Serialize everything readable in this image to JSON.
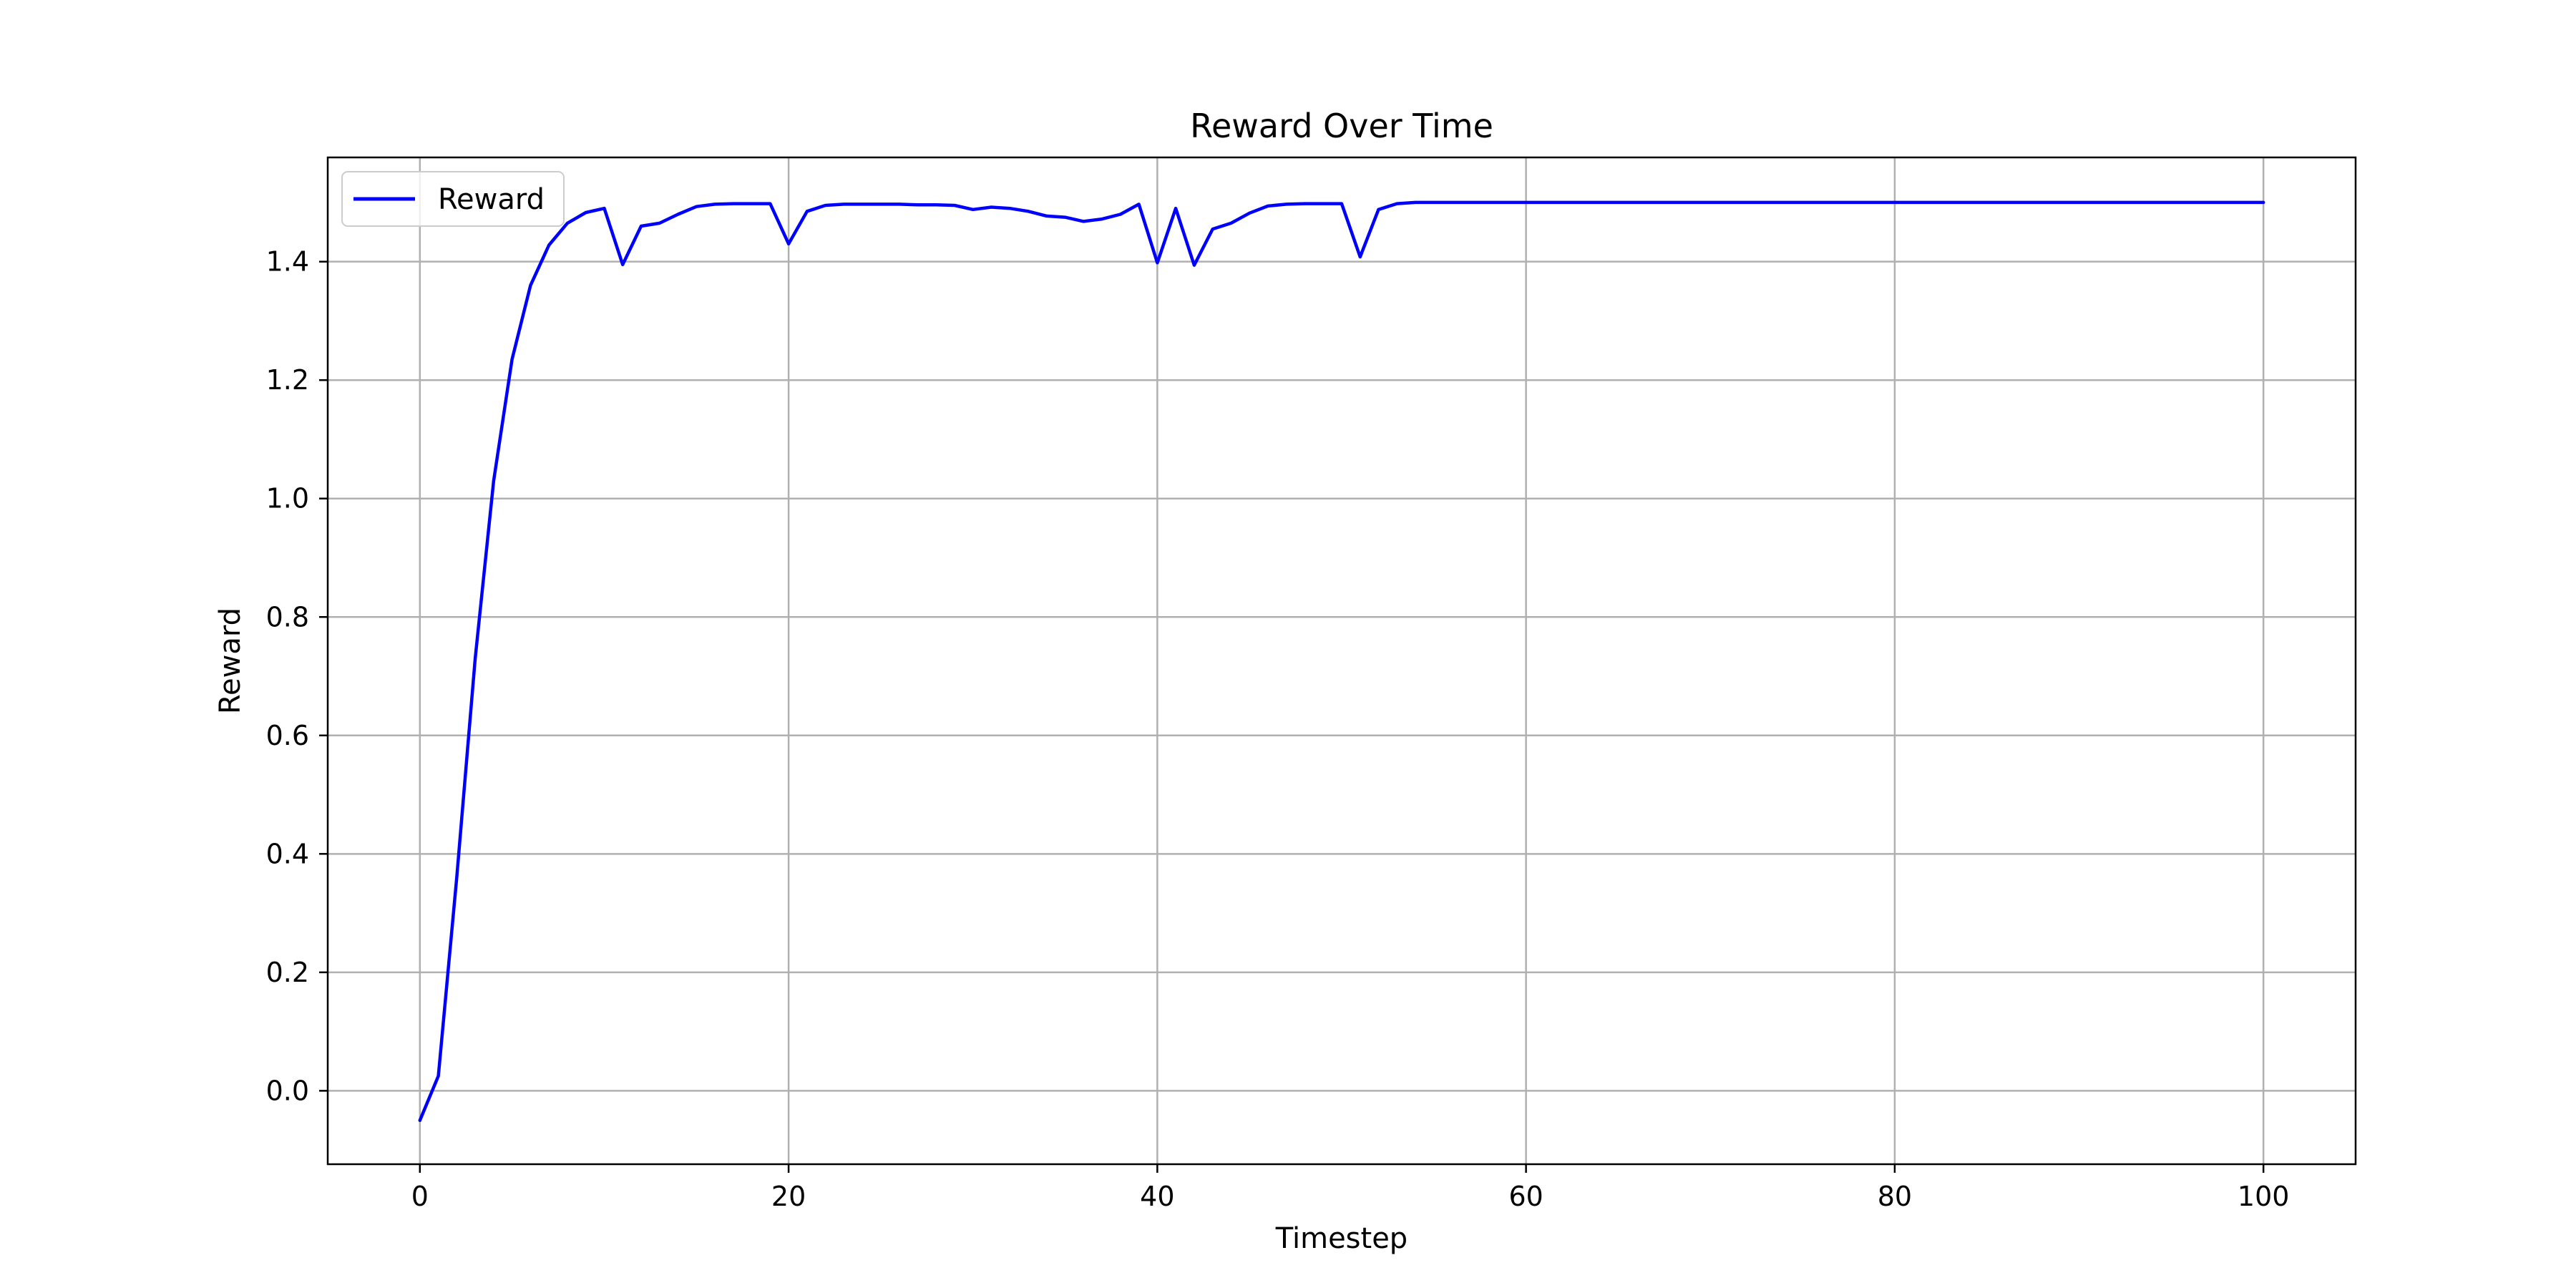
{
  "chart_data": {
    "type": "line",
    "title": "Reward Over Time",
    "xlabel": "Timestep",
    "ylabel": "Reward",
    "xlim": [
      -5,
      105
    ],
    "ylim": [
      -0.124,
      1.576
    ],
    "xticks": [
      0,
      20,
      40,
      60,
      80,
      100
    ],
    "xtick_labels": [
      "0",
      "20",
      "40",
      "60",
      "80",
      "100"
    ],
    "yticks": [
      0.0,
      0.2,
      0.4,
      0.6,
      0.8,
      1.0,
      1.2,
      1.4
    ],
    "ytick_labels": [
      "0.0",
      "0.2",
      "0.4",
      "0.6",
      "0.8",
      "1.0",
      "1.2",
      "1.4"
    ],
    "grid": true,
    "legend_position": "top-left",
    "series": [
      {
        "name": "Reward",
        "color": "#0000ff",
        "x": [
          0,
          1,
          2,
          3,
          4,
          5,
          6,
          7,
          8,
          9,
          10,
          11,
          12,
          13,
          14,
          15,
          16,
          17,
          18,
          19,
          20,
          21,
          22,
          23,
          24,
          25,
          26,
          27,
          28,
          29,
          30,
          31,
          32,
          33,
          34,
          35,
          36,
          37,
          38,
          39,
          40,
          41,
          42,
          43,
          44,
          45,
          46,
          47,
          48,
          49,
          50,
          51,
          52,
          53,
          54,
          55,
          56,
          57,
          58,
          59,
          60,
          61,
          62,
          63,
          64,
          65,
          66,
          67,
          68,
          69,
          70,
          71,
          72,
          73,
          74,
          75,
          76,
          77,
          78,
          79,
          80,
          81,
          82,
          83,
          84,
          85,
          86,
          87,
          88,
          89,
          90,
          91,
          92,
          93,
          94,
          95,
          96,
          97,
          98,
          99,
          100
        ],
        "y": [
          -0.05,
          0.025,
          0.36,
          0.73,
          1.03,
          1.235,
          1.36,
          1.428,
          1.465,
          1.483,
          1.49,
          1.395,
          1.46,
          1.465,
          1.48,
          1.493,
          1.497,
          1.498,
          1.498,
          1.498,
          1.43,
          1.485,
          1.495,
          1.497,
          1.497,
          1.497,
          1.497,
          1.496,
          1.496,
          1.495,
          1.488,
          1.492,
          1.49,
          1.485,
          1.477,
          1.475,
          1.468,
          1.472,
          1.48,
          1.497,
          1.398,
          1.49,
          1.394,
          1.455,
          1.465,
          1.482,
          1.494,
          1.497,
          1.498,
          1.498,
          1.498,
          1.408,
          1.488,
          1.498,
          1.5,
          1.5,
          1.5,
          1.5,
          1.5,
          1.5,
          1.5,
          1.5,
          1.5,
          1.5,
          1.5,
          1.5,
          1.5,
          1.5,
          1.5,
          1.5,
          1.5,
          1.5,
          1.5,
          1.5,
          1.5,
          1.5,
          1.5,
          1.5,
          1.5,
          1.5,
          1.5,
          1.5,
          1.5,
          1.5,
          1.5,
          1.5,
          1.5,
          1.5,
          1.5,
          1.5,
          1.5,
          1.5,
          1.5,
          1.5,
          1.5,
          1.5,
          1.5,
          1.5,
          1.5,
          1.5,
          1.5
        ]
      }
    ]
  }
}
